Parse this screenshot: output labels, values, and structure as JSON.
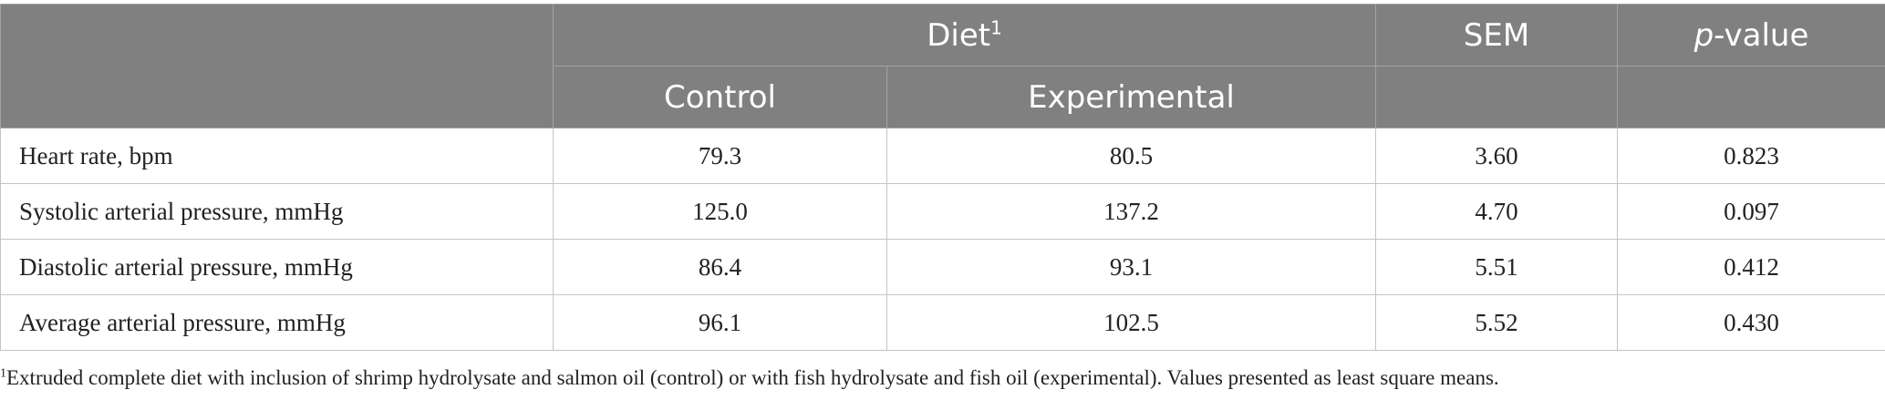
{
  "table": {
    "header": {
      "diet_group": "Diet",
      "diet_footnote_mark": "1",
      "sem": "SEM",
      "p_value_italic": "p",
      "p_value_suffix": "-value",
      "control": "Control",
      "experimental": "Experimental"
    },
    "rows": [
      {
        "label": "Heart rate, bpm",
        "control": "79.3",
        "experimental": "80.5",
        "sem": "3.60",
        "p": "0.823"
      },
      {
        "label": "Systolic arterial pressure, mmHg",
        "control": "125.0",
        "experimental": "137.2",
        "sem": "4.70",
        "p": "0.097"
      },
      {
        "label": "Diastolic arterial pressure, mmHg",
        "control": "86.4",
        "experimental": "93.1",
        "sem": "5.51",
        "p": "0.412"
      },
      {
        "label": "Average arterial pressure, mmHg",
        "control": "96.1",
        "experimental": "102.5",
        "sem": "5.52",
        "p": "0.430"
      }
    ]
  },
  "footnote": {
    "mark": "1",
    "text": "Extruded complete diet with inclusion of shrimp hydrolysate and salmon oil (control) or with fish hydrolysate and fish oil (experimental). Values presented as least square means."
  },
  "colors": {
    "header_bg": "#808080",
    "header_text": "#ffffff",
    "grid": "#c4c4c4"
  }
}
